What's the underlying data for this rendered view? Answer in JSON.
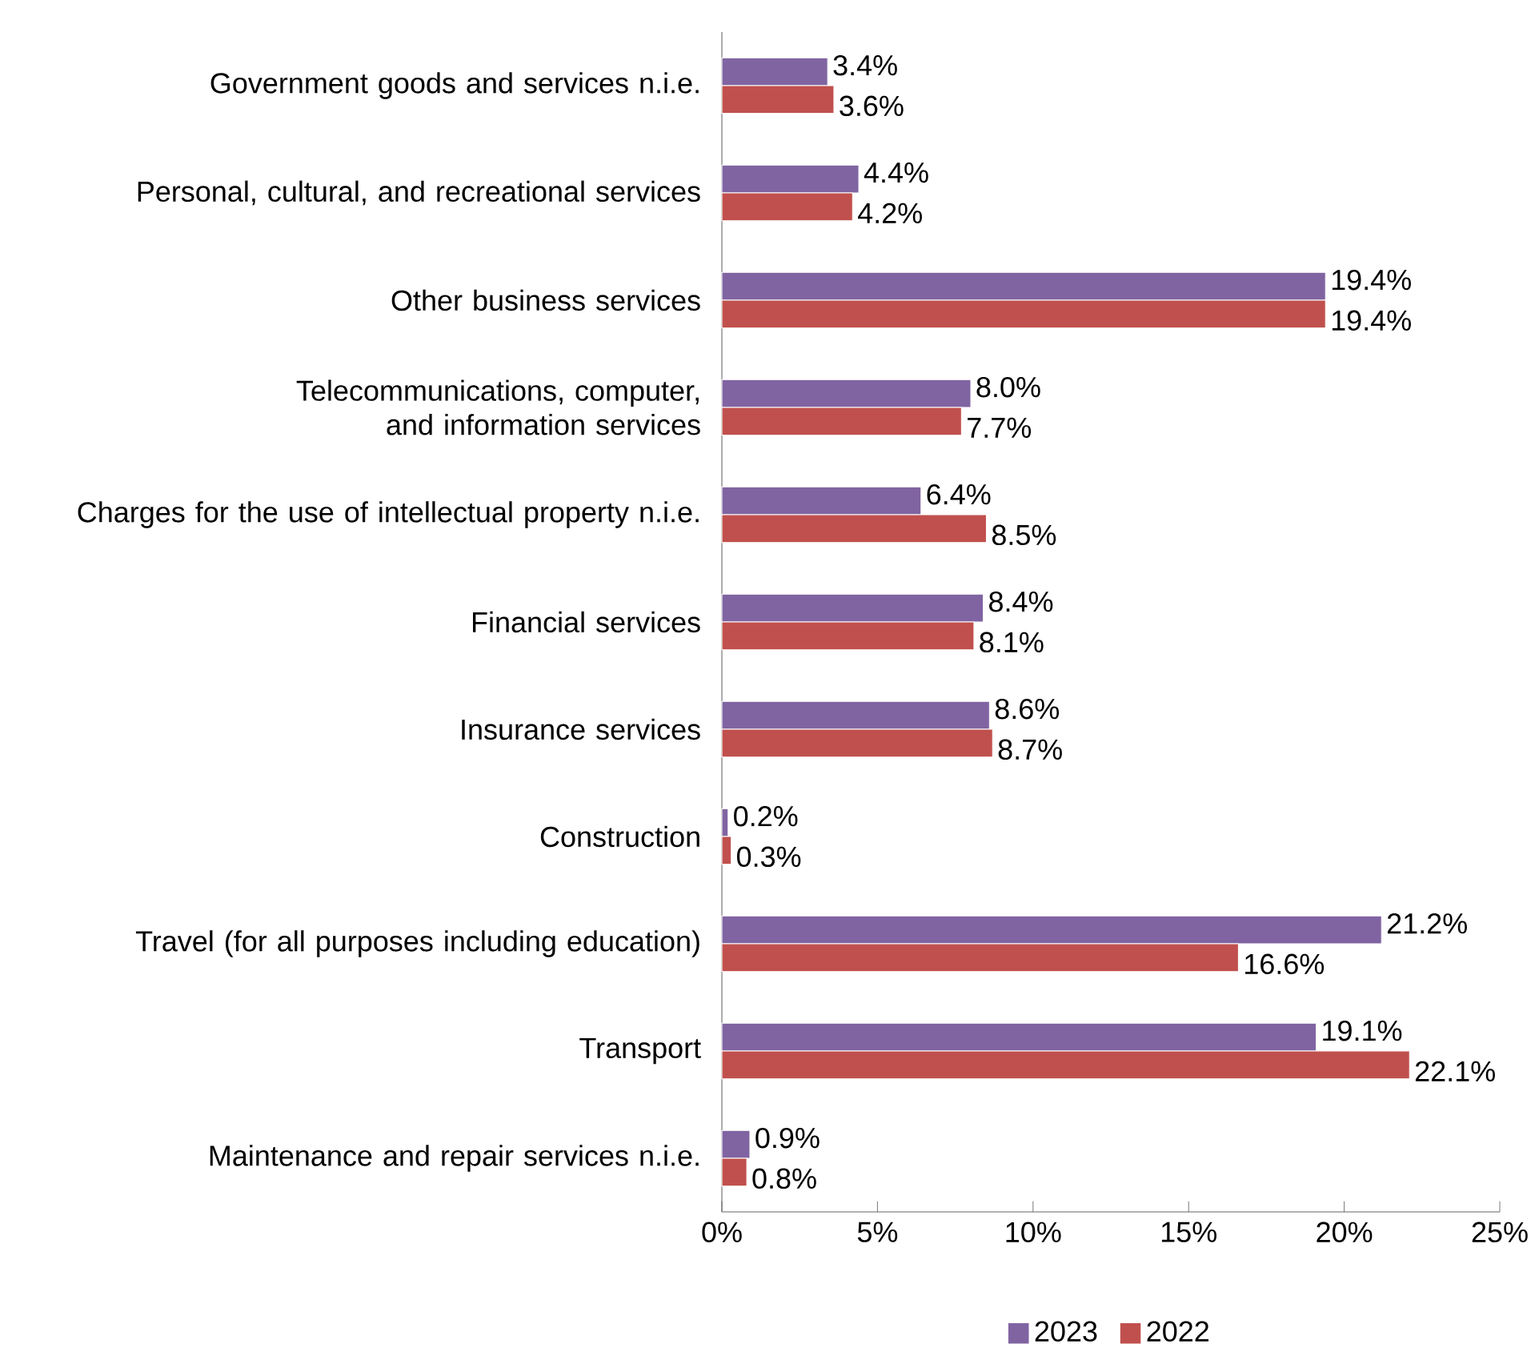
{
  "chart_data": {
    "type": "bar",
    "orientation": "horizontal",
    "categories": [
      "Government goods and services n.i.e.",
      "Personal, cultural, and recreational services",
      "Other business services",
      "Telecommunications, computer, and information services",
      "Charges for the use of intellectual property n.i.e.",
      "Financial services",
      "Insurance services",
      "Construction",
      "Travel (for all purposes including education)",
      "Transport",
      "Maintenance and repair services n.i.e."
    ],
    "series": [
      {
        "name": "2023",
        "color": "#8064a2",
        "values": [
          3.4,
          4.4,
          19.4,
          8.0,
          6.4,
          8.4,
          8.6,
          0.2,
          21.2,
          19.1,
          0.9
        ],
        "value_labels": [
          "3.4%",
          "4.4%",
          "19.4%",
          "8.0%",
          "6.4%",
          "8.4%",
          "8.6%",
          "0.2%",
          "21.2%",
          "19.1%",
          "0.9%"
        ]
      },
      {
        "name": "2022",
        "color": "#c0504d",
        "values": [
          3.6,
          4.2,
          19.4,
          7.7,
          8.5,
          8.1,
          8.7,
          0.3,
          16.6,
          22.1,
          0.8
        ],
        "value_labels": [
          "3.6%",
          "4.2%",
          "19.4%",
          "7.7%",
          "8.5%",
          "8.1%",
          "8.7%",
          "0.3%",
          "16.6%",
          "22.1%",
          "0.8%"
        ]
      }
    ],
    "xlim": [
      0,
      25
    ],
    "xticks": [
      {
        "value": 0,
        "label": "0%"
      },
      {
        "value": 5,
        "label": "5%"
      },
      {
        "value": 10,
        "label": "10%"
      },
      {
        "value": 15,
        "label": "15%"
      },
      {
        "value": 20,
        "label": "20%"
      },
      {
        "value": 25,
        "label": "25%"
      }
    ],
    "legend": "bottom"
  }
}
